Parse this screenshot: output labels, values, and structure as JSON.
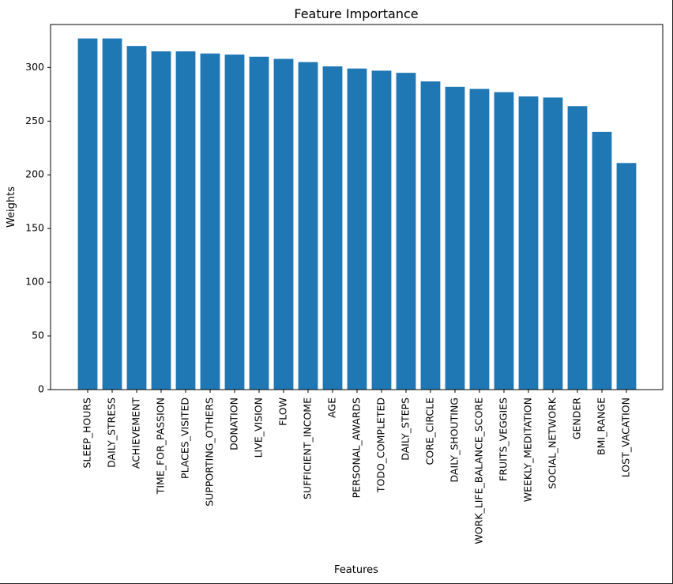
{
  "chart_data": {
    "type": "bar",
    "title": "Feature Importance",
    "xlabel": "Features",
    "ylabel": "Weights",
    "ylim": [
      0,
      340
    ],
    "yticks": [
      0,
      50,
      100,
      150,
      200,
      250,
      300
    ],
    "grid": false,
    "bar_color": "#1f77b4",
    "categories": [
      "SLEEP_HOURS",
      "DAILY_STRESS",
      "ACHIEVEMENT",
      "TIME_FOR_PASSION",
      "PLACES_VISITED",
      "SUPPORTING_OTHERS",
      "DONATION",
      "LIVE_VISION",
      "FLOW",
      "SUFFICIENT_INCOME",
      "AGE",
      "PERSONAL_AWARDS",
      "TODO_COMPLETED",
      "DAILY_STEPS",
      "CORE_CIRCLE",
      "DAILY_SHOUTING",
      "WORK_LIFE_BALANCE_SCORE",
      "FRUITS_VEGGIES",
      "WEEKLY_MEDITATION",
      "SOCIAL_NETWORK",
      "GENDER",
      "BMI_RANGE",
      "LOST_VACATION"
    ],
    "values": [
      327,
      327,
      320,
      315,
      315,
      313,
      312,
      310,
      308,
      305,
      301,
      299,
      297,
      295,
      287,
      282,
      280,
      277,
      273,
      272,
      264,
      240,
      211
    ]
  }
}
